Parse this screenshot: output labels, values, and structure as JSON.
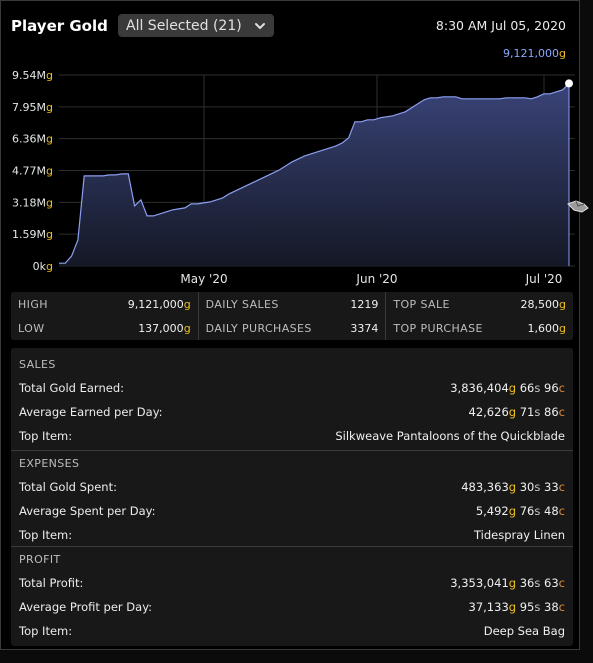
{
  "header": {
    "title": "Player Gold",
    "filter_label": "All Selected (21)",
    "timestamp": "8:30 AM Jul 05, 2020"
  },
  "latest_value": {
    "amount": "9,121,000",
    "unit": "g"
  },
  "chart_data": {
    "type": "area",
    "y_unit_suffix": "g",
    "y_ticks": [
      "0k",
      "1.59M",
      "3.18M",
      "4.77M",
      "6.36M",
      "7.95M",
      "9.54M"
    ],
    "y_tick_values": [
      0,
      1.59,
      3.18,
      4.77,
      6.36,
      7.95,
      9.54
    ],
    "x_ticks": [
      "May '20",
      "Jun '20",
      "Jul '20"
    ],
    "ylim": [
      0,
      9.54
    ],
    "series": [
      {
        "values_millions": [
          0.14,
          0.14,
          0.5,
          1.3,
          4.5,
          4.5,
          4.5,
          4.5,
          4.55,
          4.55,
          4.6,
          4.6,
          3.0,
          3.3,
          2.5,
          2.5,
          2.6,
          2.7,
          2.8,
          2.85,
          2.9,
          3.1,
          3.1,
          3.15,
          3.2,
          3.3,
          3.4,
          3.6,
          3.75,
          3.9,
          4.05,
          4.2,
          4.35,
          4.5,
          4.65,
          4.8,
          5.0,
          5.2,
          5.35,
          5.5,
          5.6,
          5.7,
          5.8,
          5.9,
          6.0,
          6.15,
          6.4,
          7.2,
          7.2,
          7.3,
          7.3,
          7.4,
          7.45,
          7.5,
          7.6,
          7.7,
          7.9,
          8.1,
          8.3,
          8.4,
          8.4,
          8.45,
          8.45,
          8.45,
          8.35,
          8.35,
          8.35,
          8.35,
          8.35,
          8.35,
          8.35,
          8.4,
          8.4,
          8.4,
          8.4,
          8.35,
          8.45,
          8.6,
          8.6,
          8.7,
          8.8,
          9.12
        ]
      }
    ],
    "grid": true,
    "colors": {
      "line": "#8c9ff0",
      "fill_top": "#3a4478",
      "fill_bottom": "#141826"
    }
  },
  "stats": {
    "high": {
      "label": "HIGH",
      "value": "9,121,000",
      "unit": "g"
    },
    "low": {
      "label": "LOW",
      "value": "137,000",
      "unit": "g"
    },
    "daily_sales": {
      "label": "DAILY SALES",
      "value": "1219"
    },
    "daily_purchases": {
      "label": "DAILY PURCHASES",
      "value": "3374"
    },
    "top_sale": {
      "label": "TOP SALE",
      "value": "28,500",
      "unit": "g"
    },
    "top_purchase": {
      "label": "TOP PURCHASE",
      "value": "1,600",
      "unit": "g"
    }
  },
  "sales": {
    "heading": "SALES",
    "total_label": "Total Gold Earned:",
    "total": {
      "g": "3,836,404",
      "s": "66",
      "c": "96"
    },
    "avg_label": "Average Earned per Day:",
    "avg": {
      "g": "42,626",
      "s": "71",
      "c": "86"
    },
    "top_label": "Top Item:",
    "top_item": "Silkweave Pantaloons of the Quickblade"
  },
  "expenses": {
    "heading": "EXPENSES",
    "total_label": "Total Gold Spent:",
    "total": {
      "g": "483,363",
      "s": "30",
      "c": "33"
    },
    "avg_label": "Average Spent per Day:",
    "avg": {
      "g": "5,492",
      "s": "76",
      "c": "48"
    },
    "top_label": "Top Item:",
    "top_item": "Tidespray Linen"
  },
  "profit": {
    "heading": "PROFIT",
    "total_label": "Total Profit:",
    "total": {
      "g": "3,353,041",
      "s": "36",
      "c": "63"
    },
    "avg_label": "Average Profit per Day:",
    "avg": {
      "g": "37,133",
      "s": "95",
      "c": "38"
    },
    "top_label": "Top Item:",
    "top_item": "Deep Sea Bag"
  },
  "currency_units": {
    "gold": "g",
    "silver": "s",
    "copper": "c"
  }
}
